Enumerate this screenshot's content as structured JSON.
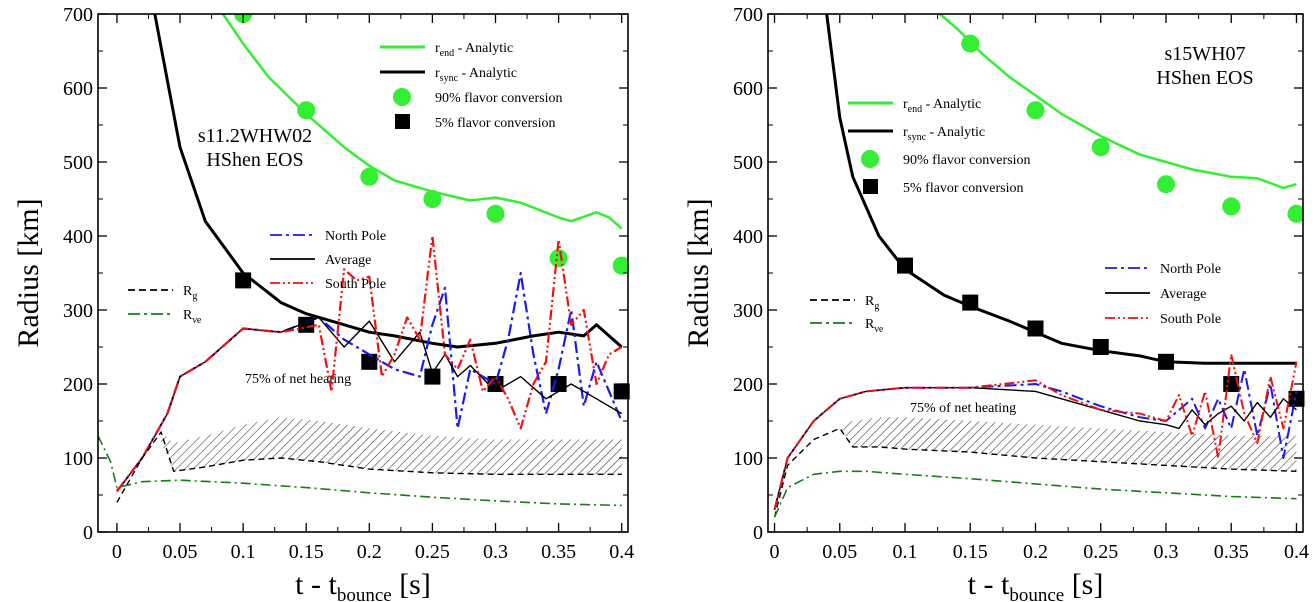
{
  "chart_data": [
    {
      "type": "line",
      "panel": "left",
      "annotation": [
        "s11.2WHW02",
        "HShen EOS"
      ],
      "xlabel": {
        "main": "t - t",
        "sub": "bounce",
        "tail": " [s]"
      },
      "ylabel": "Radius [km]",
      "xlim": [
        -0.015,
        0.405
      ],
      "ylim": [
        0,
        700
      ],
      "xticks": [
        0,
        0.05,
        0.1,
        0.15,
        0.2,
        0.25,
        0.3,
        0.35,
        0.4
      ],
      "xtick_labels": [
        "0",
        "0.05",
        "0.1",
        "0.15",
        "0.2",
        "0.25",
        "0.3",
        "0.35",
        "0.4"
      ],
      "yticks": [
        0,
        100,
        200,
        300,
        400,
        500,
        600,
        700
      ],
      "ytick_labels": [
        "0",
        "100",
        "200",
        "300",
        "400",
        "500",
        "600",
        "700"
      ],
      "grid": false,
      "hatched_band_label": "75% of net heating",
      "hatched_band": {
        "x": [
          0.035,
          0.045,
          0.07,
          0.1,
          0.13,
          0.16,
          0.2,
          0.25,
          0.3,
          0.35,
          0.4
        ],
        "upper": [
          135,
          120,
          130,
          145,
          155,
          150,
          140,
          130,
          125,
          125,
          125
        ],
        "lower": [
          120,
          82,
          88,
          97,
          100,
          95,
          85,
          80,
          78,
          78,
          78
        ]
      },
      "legend_top": [
        {
          "label": "r",
          "sub": "end",
          "tail": " - Analytic",
          "color": "#33ee33",
          "style": "line-thick"
        },
        {
          "label": "r",
          "sub": "sync",
          "tail": " - Analytic",
          "color": "#000000",
          "style": "line-thick"
        },
        {
          "label": "90% flavor conversion",
          "color": "#33ee33",
          "style": "circle"
        },
        {
          "label": "5% flavor conversion",
          "color": "#000000",
          "style": "square"
        }
      ],
      "legend_mid": [
        {
          "label": "North Pole",
          "color": "#1a1aee",
          "style": "dashdot"
        },
        {
          "label": "Average",
          "color": "#000000",
          "style": "solid"
        },
        {
          "label": "South Pole",
          "color": "#ee1111",
          "style": "dashdotdot"
        }
      ],
      "legend_low": [
        {
          "label": "R",
          "sub": "g",
          "color": "#000000",
          "style": "dash"
        },
        {
          "label": "R",
          "sub": "νe",
          "color": "#1a7a1a",
          "style": "dashdot"
        }
      ],
      "series": [
        {
          "name": "r_end - Analytic",
          "color": "#33ee33",
          "width": 2.5,
          "dash": "",
          "x": [
            0.08,
            0.1,
            0.12,
            0.15,
            0.18,
            0.2,
            0.22,
            0.25,
            0.28,
            0.3,
            0.32,
            0.35,
            0.36,
            0.38,
            0.39,
            0.4
          ],
          "y": [
            710,
            660,
            615,
            565,
            520,
            495,
            475,
            460,
            448,
            452,
            445,
            425,
            420,
            432,
            425,
            410
          ]
        },
        {
          "name": "r_sync - Analytic",
          "color": "#000000",
          "width": 3,
          "dash": "",
          "x": [
            0.03,
            0.05,
            0.07,
            0.1,
            0.13,
            0.15,
            0.17,
            0.2,
            0.22,
            0.25,
            0.27,
            0.3,
            0.33,
            0.35,
            0.37,
            0.38,
            0.4
          ],
          "y": [
            700,
            520,
            420,
            350,
            310,
            295,
            285,
            270,
            265,
            255,
            250,
            255,
            265,
            270,
            265,
            280,
            250
          ]
        },
        {
          "name": "90% flavor conversion",
          "color": "#33ee33",
          "marker": "circle",
          "x": [
            0.1,
            0.15,
            0.2,
            0.25,
            0.3,
            0.35,
            0.4
          ],
          "y": [
            700,
            570,
            480,
            450,
            430,
            370,
            360
          ]
        },
        {
          "name": "5% flavor conversion",
          "color": "#000000",
          "marker": "square",
          "x": [
            0.1,
            0.15,
            0.2,
            0.25,
            0.3,
            0.35,
            0.4
          ],
          "y": [
            340,
            280,
            230,
            210,
            200,
            200,
            190
          ]
        },
        {
          "name": "North Pole",
          "color": "#1a1aee",
          "width": 2.2,
          "dash": "12,4,3,4",
          "x": [
            0,
            0.02,
            0.04,
            0.05,
            0.07,
            0.1,
            0.13,
            0.16,
            0.18,
            0.2,
            0.22,
            0.24,
            0.25,
            0.26,
            0.27,
            0.28,
            0.3,
            0.31,
            0.32,
            0.33,
            0.34,
            0.35,
            0.36,
            0.37,
            0.38,
            0.4
          ],
          "y": [
            55,
            100,
            160,
            210,
            230,
            275,
            270,
            290,
            260,
            240,
            220,
            210,
            280,
            330,
            140,
            220,
            200,
            260,
            350,
            240,
            160,
            220,
            300,
            170,
            230,
            150
          ]
        },
        {
          "name": "Average",
          "color": "#000000",
          "width": 1.4,
          "dash": "",
          "x": [
            0,
            0.02,
            0.04,
            0.05,
            0.07,
            0.1,
            0.13,
            0.16,
            0.18,
            0.2,
            0.22,
            0.24,
            0.25,
            0.26,
            0.27,
            0.28,
            0.3,
            0.32,
            0.34,
            0.36,
            0.38,
            0.4
          ],
          "y": [
            55,
            100,
            160,
            210,
            230,
            275,
            270,
            290,
            250,
            285,
            230,
            270,
            215,
            240,
            210,
            225,
            190,
            210,
            180,
            200,
            180,
            160
          ]
        },
        {
          "name": "South Pole",
          "color": "#ee1111",
          "width": 2.2,
          "dash": "10,3,2,3,2,3",
          "x": [
            0,
            0.02,
            0.04,
            0.05,
            0.07,
            0.1,
            0.13,
            0.16,
            0.17,
            0.18,
            0.19,
            0.2,
            0.21,
            0.22,
            0.23,
            0.24,
            0.25,
            0.26,
            0.27,
            0.28,
            0.29,
            0.3,
            0.31,
            0.32,
            0.33,
            0.34,
            0.35,
            0.36,
            0.37,
            0.38,
            0.39,
            0.4
          ],
          "y": [
            55,
            100,
            160,
            210,
            230,
            275,
            270,
            280,
            190,
            355,
            340,
            345,
            210,
            240,
            290,
            260,
            400,
            240,
            220,
            260,
            190,
            210,
            180,
            140,
            200,
            230,
            395,
            280,
            300,
            200,
            240,
            250
          ]
        },
        {
          "name": "R_g",
          "color": "#000000",
          "width": 1.4,
          "dash": "6,4",
          "x": [
            0,
            0.02,
            0.035,
            0.045,
            0.07,
            0.1,
            0.13,
            0.16,
            0.2,
            0.25,
            0.3,
            0.35,
            0.4
          ],
          "y": [
            40,
            100,
            135,
            82,
            88,
            97,
            100,
            95,
            85,
            80,
            78,
            78,
            78
          ]
        },
        {
          "name": "R_νe",
          "color": "#1a7a1a",
          "width": 1.6,
          "dash": "10,4,2,4",
          "x": [
            -0.015,
            -0.005,
            0,
            0.02,
            0.05,
            0.1,
            0.15,
            0.2,
            0.25,
            0.3,
            0.35,
            0.4
          ],
          "y": [
            130,
            95,
            60,
            68,
            70,
            66,
            60,
            53,
            47,
            42,
            38,
            36
          ]
        }
      ]
    },
    {
      "type": "line",
      "panel": "right",
      "annotation": [
        "s15WH07",
        "HShen EOS"
      ],
      "xlabel": {
        "main": "t - t",
        "sub": "bounce",
        "tail": " [s]"
      },
      "ylabel": "Radius [km]",
      "xlim": [
        -0.005,
        0.405
      ],
      "ylim": [
        0,
        700
      ],
      "xticks": [
        0,
        0.05,
        0.1,
        0.15,
        0.2,
        0.25,
        0.3,
        0.35,
        0.4
      ],
      "xtick_labels": [
        "0",
        "0.05",
        "0.1",
        "0.15",
        "0.2",
        "0.25",
        "0.3",
        "0.35",
        "0.4"
      ],
      "yticks": [
        0,
        100,
        200,
        300,
        400,
        500,
        600,
        700
      ],
      "ytick_labels": [
        "0",
        "100",
        "200",
        "300",
        "400",
        "500",
        "600",
        "700"
      ],
      "grid": false,
      "hatched_band_label": "75% of net heating",
      "hatched_band": {
        "x": [
          0.05,
          0.06,
          0.08,
          0.1,
          0.15,
          0.2,
          0.25,
          0.3,
          0.35,
          0.4
        ],
        "upper": [
          145,
          150,
          155,
          155,
          150,
          145,
          140,
          135,
          130,
          130
        ],
        "lower": [
          140,
          115,
          115,
          112,
          108,
          100,
          95,
          90,
          85,
          82
        ]
      },
      "legend_top": [
        {
          "label": "r",
          "sub": "end",
          "tail": " - Analytic",
          "color": "#33ee33",
          "style": "line-thick"
        },
        {
          "label": "r",
          "sub": "sync",
          "tail": " - Analytic",
          "color": "#000000",
          "style": "line-thick"
        },
        {
          "label": "90% flavor conversion",
          "color": "#33ee33",
          "style": "circle"
        },
        {
          "label": "5% flavor conversion",
          "color": "#000000",
          "style": "square"
        }
      ],
      "legend_mid": [
        {
          "label": "North Pole",
          "color": "#1a1aee",
          "style": "dashdot"
        },
        {
          "label": "Average",
          "color": "#000000",
          "style": "solid"
        },
        {
          "label": "South Pole",
          "color": "#ee1111",
          "style": "dashdotdot"
        }
      ],
      "legend_low": [
        {
          "label": "R",
          "sub": "g",
          "color": "#000000",
          "style": "dash"
        },
        {
          "label": "R",
          "sub": "νe",
          "color": "#1a7a1a",
          "style": "dashdot"
        }
      ],
      "series": [
        {
          "name": "r_end - Analytic",
          "color": "#33ee33",
          "width": 2.5,
          "dash": "",
          "x": [
            0.12,
            0.14,
            0.16,
            0.18,
            0.2,
            0.22,
            0.25,
            0.28,
            0.3,
            0.32,
            0.35,
            0.37,
            0.39,
            0.4
          ],
          "y": [
            710,
            680,
            645,
            615,
            590,
            565,
            535,
            510,
            500,
            490,
            480,
            478,
            465,
            470
          ]
        },
        {
          "name": "r_sync - Analytic",
          "color": "#000000",
          "width": 3,
          "dash": "",
          "x": [
            0.04,
            0.05,
            0.06,
            0.08,
            0.1,
            0.13,
            0.15,
            0.18,
            0.2,
            0.22,
            0.25,
            0.28,
            0.3,
            0.33,
            0.35,
            0.38,
            0.4
          ],
          "y": [
            700,
            560,
            480,
            400,
            355,
            320,
            305,
            285,
            270,
            255,
            245,
            238,
            230,
            228,
            228,
            228,
            228
          ]
        },
        {
          "name": "90% flavor conversion",
          "color": "#33ee33",
          "marker": "circle",
          "x": [
            0.15,
            0.2,
            0.25,
            0.3,
            0.35,
            0.4
          ],
          "y": [
            660,
            570,
            520,
            470,
            440,
            430
          ]
        },
        {
          "name": "5% flavor conversion",
          "color": "#000000",
          "marker": "square",
          "x": [
            0.1,
            0.15,
            0.2,
            0.25,
            0.3,
            0.35,
            0.4
          ],
          "y": [
            360,
            310,
            275,
            250,
            230,
            200,
            180
          ]
        },
        {
          "name": "North Pole",
          "color": "#1a1aee",
          "width": 2,
          "dash": "12,4,3,4",
          "x": [
            0,
            0.01,
            0.03,
            0.05,
            0.07,
            0.1,
            0.15,
            0.2,
            0.22,
            0.25,
            0.28,
            0.3,
            0.32,
            0.33,
            0.34,
            0.35,
            0.36,
            0.37,
            0.38,
            0.39,
            0.4
          ],
          "y": [
            30,
            100,
            150,
            180,
            190,
            195,
            195,
            200,
            190,
            170,
            155,
            150,
            180,
            140,
            180,
            140,
            220,
            130,
            200,
            100,
            190
          ]
        },
        {
          "name": "Average",
          "color": "#000000",
          "width": 1.4,
          "dash": "",
          "x": [
            0,
            0.01,
            0.03,
            0.05,
            0.07,
            0.1,
            0.15,
            0.2,
            0.22,
            0.25,
            0.28,
            0.3,
            0.31,
            0.32,
            0.33,
            0.34,
            0.35,
            0.36,
            0.37,
            0.38,
            0.39,
            0.4
          ],
          "y": [
            30,
            100,
            150,
            180,
            190,
            195,
            195,
            190,
            180,
            165,
            150,
            145,
            140,
            165,
            145,
            160,
            170,
            150,
            175,
            155,
            180,
            165
          ]
        },
        {
          "name": "South Pole",
          "color": "#ee1111",
          "width": 2,
          "dash": "10,3,2,3,2,3",
          "x": [
            0,
            0.01,
            0.03,
            0.05,
            0.07,
            0.1,
            0.15,
            0.2,
            0.22,
            0.25,
            0.28,
            0.3,
            0.31,
            0.32,
            0.33,
            0.34,
            0.35,
            0.36,
            0.37,
            0.38,
            0.39,
            0.4
          ],
          "y": [
            30,
            100,
            150,
            180,
            190,
            195,
            195,
            205,
            185,
            165,
            160,
            150,
            185,
            130,
            190,
            100,
            240,
            160,
            120,
            210,
            140,
            230
          ]
        },
        {
          "name": "R_g",
          "color": "#000000",
          "width": 1.4,
          "dash": "6,4",
          "x": [
            0,
            0.01,
            0.03,
            0.05,
            0.06,
            0.08,
            0.1,
            0.15,
            0.2,
            0.25,
            0.3,
            0.35,
            0.4
          ],
          "y": [
            20,
            90,
            125,
            140,
            115,
            115,
            112,
            108,
            100,
            95,
            90,
            85,
            82
          ]
        },
        {
          "name": "R_νe",
          "color": "#1a7a1a",
          "width": 1.6,
          "dash": "10,4,2,4",
          "x": [
            0,
            0.01,
            0.03,
            0.05,
            0.07,
            0.1,
            0.15,
            0.2,
            0.25,
            0.3,
            0.35,
            0.4
          ],
          "y": [
            20,
            60,
            78,
            82,
            82,
            78,
            72,
            65,
            58,
            53,
            48,
            45
          ]
        }
      ]
    }
  ]
}
